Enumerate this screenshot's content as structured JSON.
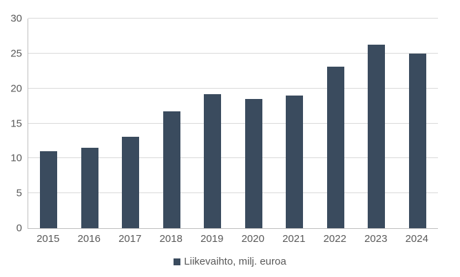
{
  "chart_data": {
    "type": "bar",
    "title": "",
    "categories": [
      "2015",
      "2016",
      "2017",
      "2018",
      "2019",
      "2020",
      "2021",
      "2022",
      "2023",
      "2024"
    ],
    "series": [
      {
        "name": "Liikevaihto, milj. euroa",
        "values": [
          11.0,
          11.5,
          13.1,
          16.7,
          19.2,
          18.5,
          19.0,
          23.1,
          26.3,
          25.0
        ]
      }
    ],
    "xlabel": "",
    "ylabel": "",
    "ylim": [
      0,
      30
    ],
    "yticks": [
      0,
      5,
      10,
      15,
      20,
      25,
      30
    ],
    "grid": true,
    "legend_position": "bottom",
    "colors": {
      "bar": "#3A4B5E",
      "gridline": "#D9D9D9",
      "axis_line": "#BFBFBF",
      "tick_text": "#595959",
      "background": "#FFFFFF"
    }
  },
  "legend": {
    "items": [
      {
        "label": "Liikevaihto, milj. euroa",
        "swatch_color": "#3A4B5E"
      }
    ]
  }
}
